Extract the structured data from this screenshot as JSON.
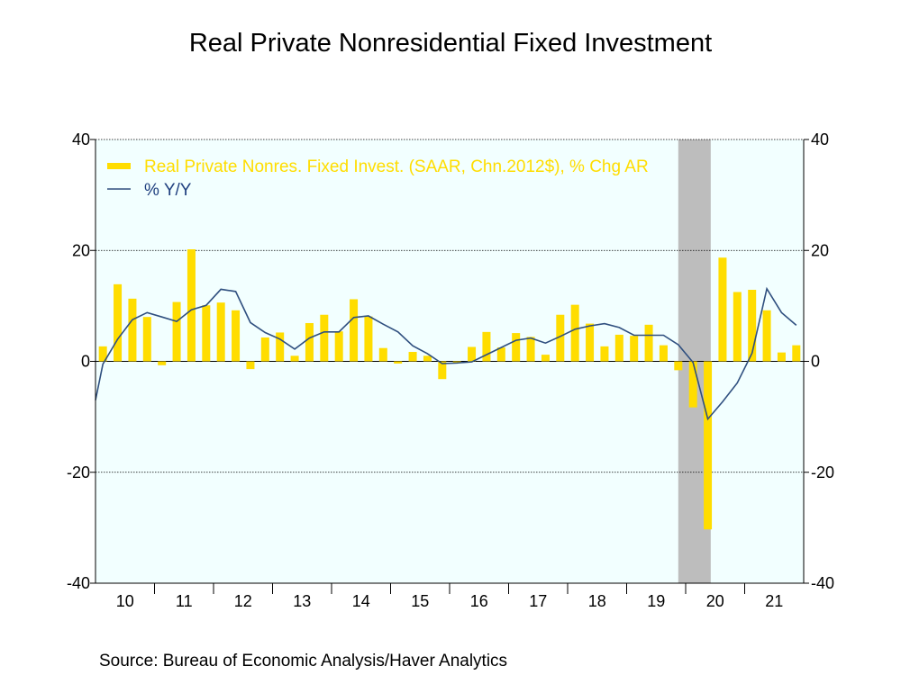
{
  "chart_data": {
    "type": "bar",
    "title": "Real Private Nonresidential Fixed Investment",
    "source": "Source:  Bureau of Economic Analysis/Haver Analytics",
    "ylim": [
      -40,
      40
    ],
    "yticks": [
      -40,
      -20,
      0,
      20,
      40
    ],
    "yticks_right": [
      -40,
      -20,
      0,
      20,
      40
    ],
    "x_year_labels": [
      "10",
      "11",
      "12",
      "13",
      "14",
      "15",
      "16",
      "17",
      "18",
      "19",
      "20",
      "21"
    ],
    "start_year": 2010,
    "recession": {
      "start": "2019 Q4",
      "end": "2020 Q2"
    },
    "grid": true,
    "legend_position": "top-left",
    "colors": {
      "bar": "#ffdd00",
      "line": "#2f4f7f",
      "plot_bg": "#f2ffff",
      "recession": "#bdbdbd",
      "legend_bar_text": "#ffdd00",
      "legend_line_text": "#1f3f7f"
    },
    "series": [
      {
        "name": "Real Private Nonres. Fixed Invest. (SAAR, Chn.2012$), % Chg AR",
        "type": "bar",
        "values": [
          2.7,
          13.9,
          11.3,
          8.0,
          -0.7,
          10.7,
          20.2,
          10.1,
          10.6,
          9.2,
          -1.4,
          4.3,
          5.2,
          1.0,
          6.9,
          8.4,
          5.4,
          11.2,
          8.1,
          2.4,
          -0.4,
          1.7,
          1.0,
          -3.2,
          -0.3,
          2.6,
          5.3,
          2.5,
          5.1,
          4.4,
          1.2,
          8.4,
          10.2,
          6.8,
          2.7,
          4.8,
          4.6,
          6.6,
          2.9,
          -1.6,
          -8.3,
          -30.3,
          18.7,
          12.5,
          12.9,
          9.2,
          1.6,
          2.9
        ]
      },
      {
        "name": "% Y/Y",
        "type": "line",
        "values": [
          -7.0,
          -0.5,
          4.0,
          7.5,
          8.8,
          8.0,
          7.2,
          9.3,
          10.1,
          13.0,
          12.6,
          7.0,
          5.2,
          4.0,
          2.2,
          4.2,
          5.3,
          5.3,
          7.9,
          8.2,
          6.7,
          5.3,
          2.8,
          1.4,
          -0.4,
          -0.3,
          -0.1,
          1.2,
          2.5,
          3.8,
          4.2,
          3.3,
          4.5,
          5.8,
          6.4,
          6.8,
          6.1,
          4.7,
          4.7,
          4.7,
          3.0,
          -0.2,
          -10.4,
          -7.3,
          -3.9,
          1.5,
          13.1,
          8.8,
          6.5
        ]
      }
    ]
  }
}
